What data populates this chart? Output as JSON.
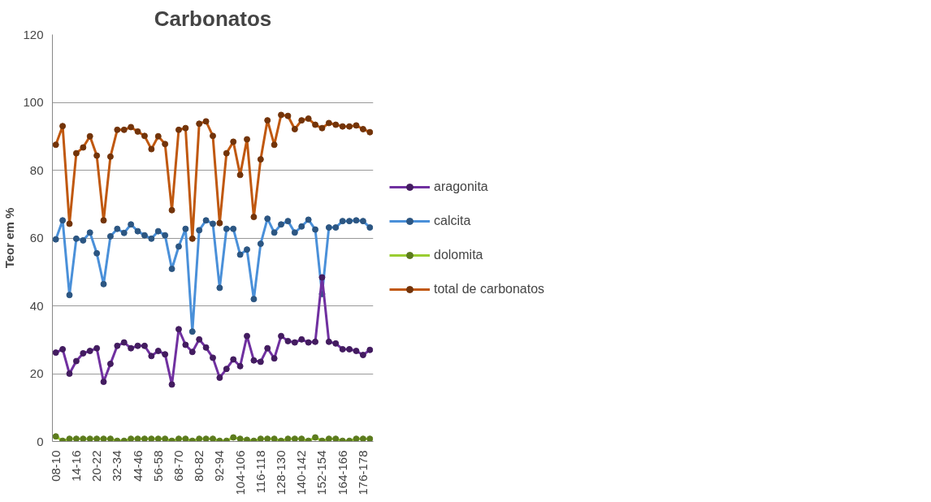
{
  "chart_data": {
    "type": "line",
    "title": "Carbonatos",
    "ylabel": "Teor em %",
    "categories": [
      "08-10",
      null,
      null,
      "14-16",
      null,
      null,
      "20-22",
      null,
      null,
      "32-34",
      null,
      null,
      "44-46",
      null,
      null,
      "56-58",
      null,
      null,
      "68-70",
      null,
      null,
      "80-82",
      null,
      null,
      "92-94",
      null,
      null,
      "104-106",
      null,
      null,
      "116-118",
      null,
      null,
      "128-130",
      null,
      null,
      "140-142",
      null,
      null,
      "152-154",
      null,
      null,
      "164-166",
      null,
      null,
      "176-178",
      null
    ],
    "series": [
      {
        "name": "aragonita",
        "color": "#7030a0",
        "values": [
          26.2,
          27.2,
          20,
          23.7,
          26,
          26.7,
          27.5,
          17.6,
          22.9,
          28.2,
          29.2,
          27.5,
          28.2,
          28.2,
          25.2,
          26.7,
          25.7,
          16.8,
          33.1,
          28.5,
          26.4,
          30.1,
          27.7,
          24.7,
          18.8,
          21.4,
          24.2,
          22.2,
          31.1,
          23.9,
          23.5,
          27.5,
          24.5,
          31.1,
          29.6,
          29.2,
          30.1,
          29.2,
          29.4,
          48.4,
          29.4,
          28.9,
          27.2,
          27.2,
          26.7,
          25.5,
          27
        ]
      },
      {
        "name": "calcita",
        "color": "#4a90d9",
        "values": [
          59.6,
          65.2,
          43.2,
          59.8,
          59.3,
          61.6,
          55.5,
          46.4,
          60.5,
          62.7,
          61.5,
          64,
          62,
          60.8,
          59.8,
          62,
          60.8,
          50.9,
          57.5,
          62.7,
          32.4,
          62.3,
          65.2,
          64.2,
          45.3,
          62.7,
          62.7,
          55.1,
          56.6,
          42,
          58.3,
          65.7,
          61.6,
          64,
          65,
          61.6,
          63.4,
          65.4,
          62.5,
          43.5,
          63.1,
          63.1,
          65,
          65,
          65.2,
          65,
          63.1
        ]
      },
      {
        "name": "dolomita",
        "color": "#9acd32",
        "values": [
          1.5,
          0.2,
          0.8,
          0.8,
          0.8,
          0.8,
          0.8,
          0.8,
          0.8,
          0.2,
          0.2,
          0.8,
          0.8,
          0.8,
          0.8,
          0.8,
          0.8,
          0.2,
          0.8,
          0.8,
          0.2,
          0.8,
          0.8,
          0.8,
          0.2,
          0.2,
          1.2,
          0.8,
          0.5,
          0.2,
          0.8,
          0.8,
          0.8,
          0.2,
          0.8,
          0.8,
          0.8,
          0.2,
          1.2,
          0.2,
          0.8,
          0.8,
          0.2,
          0.2,
          0.8,
          0.8,
          0.8
        ]
      },
      {
        "name": "total de carbonatos",
        "color": "#c0580f",
        "values": [
          87.5,
          93,
          64.2,
          85,
          86.7,
          90,
          84.3,
          65.2,
          84,
          91.9,
          91.9,
          92.7,
          91.4,
          90.1,
          86.2,
          90,
          87.7,
          68.2,
          91.9,
          92.4,
          59.8,
          93.7,
          94.4,
          90.1,
          64.4,
          85,
          88.4,
          78.6,
          89.1,
          66.2,
          83.2,
          94.7,
          87.5,
          96.3,
          96,
          92.1,
          94.7,
          95.2,
          93.4,
          92.4,
          93.9,
          93.4,
          92.9,
          92.9,
          93.2,
          92.1,
          91.2
        ]
      }
    ],
    "ylim": [
      0,
      120
    ],
    "yticks": [
      0,
      20,
      40,
      60,
      80,
      100,
      120
    ],
    "grid": "y",
    "legend": "right",
    "marker": "circle",
    "line_style": "solid"
  }
}
